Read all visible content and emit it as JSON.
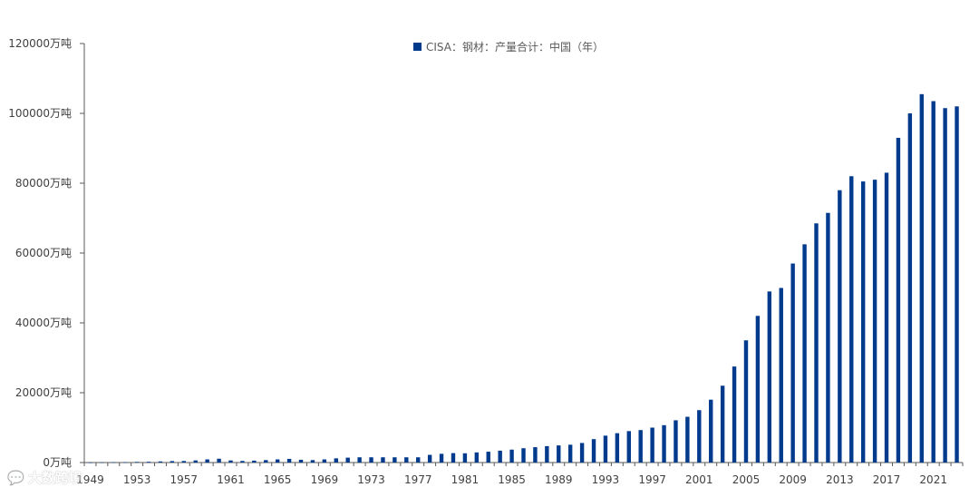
{
  "chart_data": {
    "type": "bar",
    "unit": "万吨",
    "legend": {
      "label": "CISA：钢材：产量合计：中国（年）",
      "placement": "top-center"
    },
    "series": [
      {
        "name": "CISA：钢材：产量合计：中国（年）",
        "color": "#003a8c",
        "years": [
          1949,
          1950,
          1951,
          1952,
          1953,
          1954,
          1955,
          1956,
          1957,
          1958,
          1959,
          1960,
          1961,
          1962,
          1963,
          1964,
          1965,
          1966,
          1967,
          1968,
          1969,
          1970,
          1971,
          1972,
          1973,
          1974,
          1975,
          1976,
          1977,
          1978,
          1979,
          1980,
          1981,
          1982,
          1983,
          1984,
          1985,
          1986,
          1987,
          1988,
          1989,
          1990,
          1991,
          1992,
          1993,
          1994,
          1995,
          1996,
          1997,
          1998,
          1999,
          2000,
          2001,
          2002,
          2003,
          2004,
          2005,
          2006,
          2007,
          2008,
          2009,
          2010,
          2011,
          2012,
          2013,
          2014,
          2015,
          2016,
          2017,
          2018,
          2019,
          2020,
          2021,
          2022,
          2023
        ],
        "values": [
          14,
          50,
          80,
          110,
          180,
          220,
          310,
          410,
          440,
          600,
          900,
          1100,
          600,
          450,
          550,
          700,
          900,
          1050,
          800,
          700,
          900,
          1200,
          1400,
          1500,
          1500,
          1500,
          1500,
          1500,
          1500,
          2200,
          2500,
          2700,
          2650,
          2900,
          3100,
          3400,
          3700,
          4100,
          4400,
          4700,
          4900,
          5100,
          5600,
          6700,
          7700,
          8400,
          9000,
          9300,
          10000,
          10700,
          12100,
          13100,
          15000,
          18000,
          22000,
          27500,
          35000,
          42000,
          49000,
          50000,
          57000,
          62500,
          68500,
          71500,
          78000,
          82000,
          80500,
          81000,
          83000,
          93000,
          100000,
          105500,
          103500,
          101500,
          102000
        ]
      }
    ],
    "x_tick_labels": [
      "1949",
      "1953",
      "1957",
      "1961",
      "1965",
      "1969",
      "1973",
      "1977",
      "1981",
      "1985",
      "1989",
      "1993",
      "1997",
      "2001",
      "2005",
      "2009",
      "2013",
      "2017",
      "2021"
    ],
    "y_ticks": [
      {
        "value": 0,
        "label": "0万吨"
      },
      {
        "value": 20000,
        "label": "20000万吨"
      },
      {
        "value": 40000,
        "label": "40000万吨"
      },
      {
        "value": 60000,
        "label": "60000万吨"
      },
      {
        "value": 80000,
        "label": "80000万吨"
      },
      {
        "value": 100000,
        "label": "100000万吨"
      },
      {
        "value": 120000,
        "label": "120000万吨"
      }
    ],
    "ylim": [
      0,
      120000
    ],
    "grid": false
  },
  "watermark": {
    "text": "大数跨境",
    "icon": "chat-bubble-icon"
  }
}
